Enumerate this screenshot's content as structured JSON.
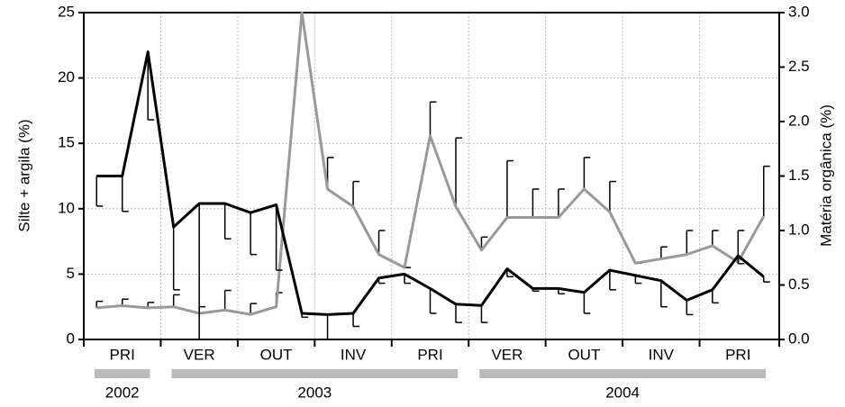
{
  "chart_data": {
    "type": "line",
    "ylabel": "Silte + argila (%)",
    "y2label": "Matéria orgânica (%)",
    "ylim": [
      0,
      25
    ],
    "yticks": [
      0,
      5,
      10,
      15,
      20,
      25
    ],
    "y2lim": [
      0,
      3
    ],
    "y2ticks": [
      {
        "value": 0,
        "label": "0.0"
      },
      {
        "value": 0.5,
        "label": "0.5"
      },
      {
        "value": 1,
        "label": "1.0"
      },
      {
        "value": 1.5,
        "label": "1.5"
      },
      {
        "value": 2,
        "label": "2.0"
      },
      {
        "value": 2.5,
        "label": "2.5"
      },
      {
        "value": 3,
        "label": "3.0"
      }
    ],
    "grid": true,
    "categories": [
      null,
      null,
      null,
      null,
      null,
      null,
      null,
      null,
      null,
      null,
      null,
      null,
      null,
      null,
      null,
      null,
      null,
      null,
      null,
      null,
      null,
      null,
      null,
      null,
      null,
      null,
      null
    ],
    "seasons": [
      "PRI",
      "VER",
      "OUT",
      "INV",
      "PRI",
      "VER",
      "OUT",
      "INV",
      "PRI"
    ],
    "years": [
      {
        "label": "2002",
        "span": 1
      },
      {
        "label": "2003",
        "span": 4
      },
      {
        "label": "2004",
        "span": 4
      }
    ],
    "series": [
      {
        "color": "#000000",
        "error_direction": "down",
        "values": [
          12.5,
          12.5,
          22,
          8.6,
          10.4,
          10.4,
          9.7,
          10.3,
          2.0,
          1.9,
          2.0,
          4.7,
          5.0,
          3.9,
          2.7,
          2.6,
          5.4,
          3.9,
          3.9,
          3.6,
          5.3,
          4.9,
          4.5,
          3.0,
          3.8,
          6.4,
          4.8
        ],
        "errors": [
          2.3,
          2.7,
          5.2,
          4.8,
          10.4,
          2.7,
          3.2,
          5.0,
          0.3,
          1.9,
          1.0,
          0.4,
          0.7,
          1.9,
          1.4,
          1.3,
          0.6,
          0.2,
          0.4,
          1.6,
          1.5,
          0.6,
          2.0,
          1.1,
          1.0,
          0.6,
          0.4
        ]
      },
      {
        "color": "#999999",
        "axis": "y2",
        "error_direction": "up",
        "values": [
          0.29,
          0.31,
          0.29,
          0.3,
          0.24,
          0.27,
          0.23,
          0.3,
          3.0,
          1.38,
          1.22,
          0.78,
          0.66,
          1.87,
          1.22,
          0.82,
          1.12,
          1.12,
          1.12,
          1.38,
          1.17,
          0.7,
          0.74,
          0.78,
          0.86,
          0.71,
          1.13
        ],
        "errors": [
          0.06,
          0.06,
          0.05,
          0.11,
          0.06,
          0.18,
          0.1,
          0.13,
          0,
          0.29,
          0.23,
          0.22,
          0,
          0.31,
          0.63,
          0.12,
          0.52,
          0.26,
          0.26,
          0.29,
          0.28,
          0,
          0.11,
          0.22,
          0.14,
          0.29,
          0.46
        ]
      }
    ]
  }
}
